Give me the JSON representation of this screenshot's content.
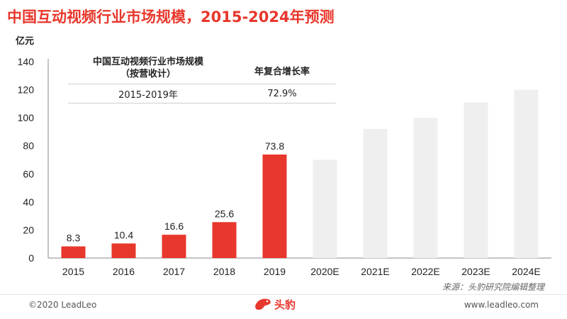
{
  "page": {
    "title": "中国互动视频行业市场规模，2015-2024年预测",
    "source": "来源：头豹研究院编辑整理",
    "copyright": "©2020 LeadLeo",
    "website": "www.leadleo.com",
    "logo_text": "头豹"
  },
  "cagr_table": {
    "header_metric": "中国互动视频行业市场规模（按营收计）",
    "header_metric_line1": "中国互动视频行业市场规模",
    "header_metric_line2": "（按营收计）",
    "header_rate": "年复合增长率",
    "period": "2015-2019年",
    "rate": "72.9%"
  },
  "chart_data": {
    "type": "bar",
    "title": "中国互动视频行业市场规模，2015-2024年预测",
    "ylabel": "亿元",
    "xlabel": "",
    "ylim": [
      0,
      140
    ],
    "yticks": [
      0,
      20,
      40,
      60,
      80,
      100,
      120,
      140
    ],
    "grid": false,
    "categories": [
      "2015",
      "2016",
      "2017",
      "2018",
      "2019",
      "2020E",
      "2021E",
      "2022E",
      "2023E",
      "2024E"
    ],
    "values": [
      8.3,
      10.4,
      16.6,
      25.6,
      73.8,
      70,
      92,
      100,
      111,
      120
    ],
    "labels": [
      "8.3",
      "10.4",
      "16.6",
      "25.6",
      "73.8",
      "",
      "",
      "",
      "",
      ""
    ],
    "historical_color": "#e8372c",
    "forecast_color": "#efefef",
    "forecast_from_index": 5
  }
}
